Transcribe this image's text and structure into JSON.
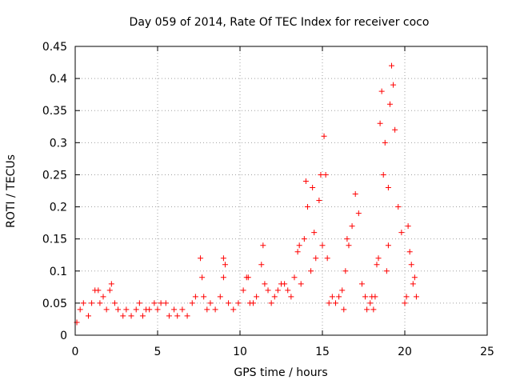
{
  "chart_data": {
    "type": "scatter",
    "title": "Day 059 of 2014, Rate Of TEC Index for receiver coco",
    "xlabel": "GPS time / hours",
    "ylabel": "ROTI / TECUs",
    "xlim": [
      0,
      25
    ],
    "ylim": [
      0,
      0.45
    ],
    "x_ticks": [
      "0",
      "5",
      "10",
      "15",
      "20",
      "25"
    ],
    "y_ticks": [
      "0",
      "0.05",
      "0.1",
      "0.15",
      "0.2",
      "0.25",
      "0.3",
      "0.35",
      "0.4",
      "0.45"
    ],
    "grid": true,
    "marker": "+",
    "color": "#ff0000",
    "series": [
      {
        "name": "ROTI",
        "x": [
          0.1,
          0.3,
          0.5,
          0.8,
          1.0,
          1.2,
          1.4,
          1.5,
          1.7,
          1.9,
          2.1,
          2.2,
          2.4,
          2.6,
          2.9,
          3.1,
          3.4,
          3.7,
          3.9,
          4.1,
          4.3,
          4.5,
          4.8,
          5.0,
          5.2,
          5.5,
          5.7,
          6.0,
          6.2,
          6.5,
          6.8,
          7.1,
          7.3,
          7.6,
          7.7,
          7.8,
          8.0,
          8.2,
          8.5,
          8.8,
          9.0,
          9.0,
          9.1,
          9.3,
          9.6,
          9.9,
          10.2,
          10.4,
          10.5,
          10.6,
          10.8,
          11.0,
          11.3,
          11.4,
          11.5,
          11.7,
          11.9,
          12.1,
          12.3,
          12.5,
          12.7,
          12.9,
          13.1,
          13.3,
          13.5,
          13.6,
          13.7,
          13.9,
          14.0,
          14.1,
          14.3,
          14.4,
          14.5,
          14.6,
          14.8,
          14.9,
          15.0,
          15.1,
          15.2,
          15.3,
          15.4,
          15.6,
          15.8,
          16.0,
          16.2,
          16.3,
          16.4,
          16.5,
          16.6,
          16.8,
          17.0,
          17.2,
          17.4,
          17.6,
          17.7,
          17.9,
          18.0,
          18.1,
          18.2,
          18.3,
          18.4,
          18.5,
          18.6,
          18.7,
          18.8,
          18.9,
          19.0,
          19.0,
          19.1,
          19.2,
          19.3,
          19.4,
          19.6,
          19.8,
          20.0,
          20.1,
          20.2,
          20.3,
          20.4,
          20.5,
          20.6,
          20.7
        ],
        "y": [
          0.02,
          0.04,
          0.05,
          0.03,
          0.05,
          0.07,
          0.07,
          0.05,
          0.06,
          0.04,
          0.07,
          0.08,
          0.05,
          0.04,
          0.03,
          0.04,
          0.03,
          0.04,
          0.05,
          0.03,
          0.04,
          0.04,
          0.05,
          0.04,
          0.05,
          0.05,
          0.03,
          0.04,
          0.03,
          0.04,
          0.03,
          0.05,
          0.06,
          0.12,
          0.09,
          0.06,
          0.04,
          0.05,
          0.04,
          0.06,
          0.12,
          0.09,
          0.11,
          0.05,
          0.04,
          0.05,
          0.07,
          0.09,
          0.09,
          0.05,
          0.05,
          0.06,
          0.11,
          0.14,
          0.08,
          0.07,
          0.05,
          0.06,
          0.07,
          0.08,
          0.08,
          0.07,
          0.06,
          0.09,
          0.13,
          0.14,
          0.08,
          0.15,
          0.24,
          0.2,
          0.1,
          0.23,
          0.16,
          0.12,
          0.21,
          0.25,
          0.14,
          0.31,
          0.25,
          0.12,
          0.05,
          0.06,
          0.05,
          0.06,
          0.07,
          0.04,
          0.1,
          0.15,
          0.14,
          0.17,
          0.22,
          0.19,
          0.08,
          0.06,
          0.04,
          0.05,
          0.06,
          0.04,
          0.06,
          0.11,
          0.12,
          0.33,
          0.38,
          0.25,
          0.3,
          0.1,
          0.14,
          0.23,
          0.36,
          0.42,
          0.39,
          0.32,
          0.2,
          0.16,
          0.05,
          0.06,
          0.17,
          0.13,
          0.11,
          0.08,
          0.09,
          0.06
        ]
      }
    ]
  }
}
